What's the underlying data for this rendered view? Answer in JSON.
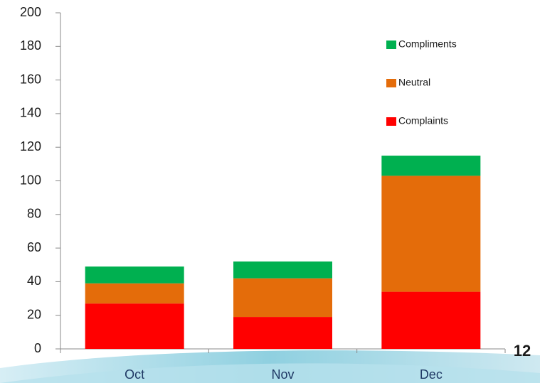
{
  "chart_data": {
    "type": "stacked_bar",
    "categories": [
      "Oct",
      "Nov",
      "Dec"
    ],
    "series": [
      {
        "name": "Complaints",
        "color": "#ff0000",
        "values": [
          27,
          19,
          34
        ]
      },
      {
        "name": "Neutral",
        "color": "#e46c0a",
        "values": [
          12,
          23,
          69
        ]
      },
      {
        "name": "Compliments",
        "color": "#00b050",
        "values": [
          10,
          10,
          12
        ]
      }
    ],
    "ylim": [
      0,
      200
    ],
    "yticks": [
      0,
      20,
      40,
      60,
      80,
      100,
      120,
      140,
      160,
      180,
      200
    ],
    "legend": "upper right",
    "grid": false
  },
  "page_number": "12"
}
